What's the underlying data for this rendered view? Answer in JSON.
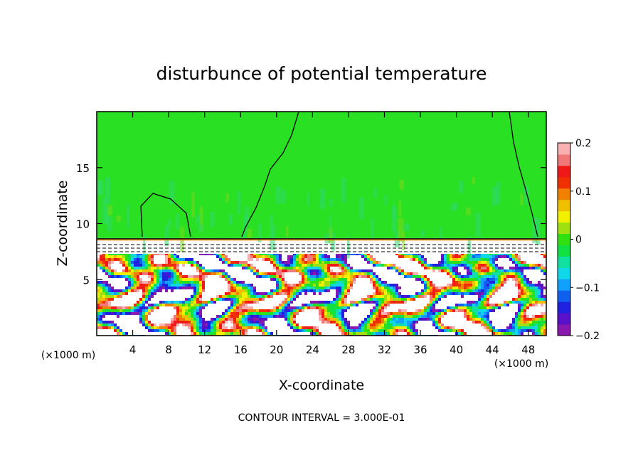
{
  "chart_data": {
    "type": "heatmap",
    "title": "disturbunce of potential temperature",
    "xlabel": "X-coordinate",
    "ylabel": "Z-coordinate",
    "x_unit": "(×1000 m)",
    "y_unit": "(×1000 m)",
    "xlim": [
      0,
      50
    ],
    "ylim": [
      0,
      20
    ],
    "xticks": [
      4,
      8,
      12,
      16,
      20,
      24,
      28,
      32,
      36,
      40,
      44,
      48
    ],
    "yticks": [
      5,
      10,
      15
    ],
    "colorbar": {
      "range": [
        -0.2,
        0.2
      ],
      "tick_labels": [
        "0.2",
        "0.1",
        "0",
        "−0.1",
        "−0.2"
      ],
      "tick_values": [
        0.2,
        0.1,
        0,
        -0.1,
        -0.2
      ],
      "colors": [
        "#8a18b0",
        "#5a10c8",
        "#2020e0",
        "#1060f0",
        "#10a0ff",
        "#10d8e8",
        "#10e0a0",
        "#10e040",
        "#30e010",
        "#a0e010",
        "#f0f000",
        "#f0c000",
        "#f08000",
        "#f03000",
        "#f01818",
        "#f07878",
        "#f8b0b0"
      ]
    },
    "upper_layer_value": 0,
    "interface_height": 8.7,
    "contour_interval_text": "CONTOUR INTERVAL = 3.000E-01"
  }
}
